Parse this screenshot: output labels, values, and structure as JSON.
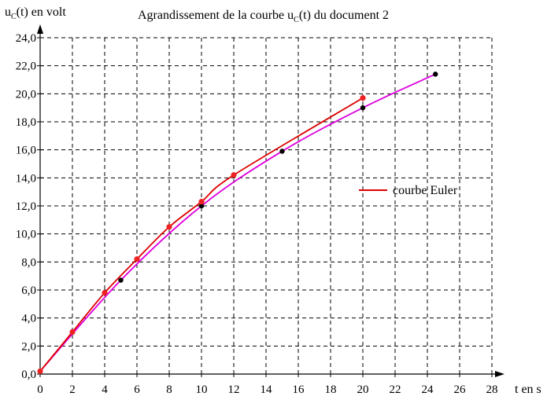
{
  "chart_data": {
    "type": "line",
    "title": "Agrandissement de la courbe uC(t) du document 2",
    "ylabel": "uC(t) en volt",
    "xlabel": "t en s",
    "xlim": [
      0,
      28
    ],
    "ylim": [
      0,
      24
    ],
    "grid": true,
    "x_ticks": [
      0,
      2,
      4,
      6,
      8,
      10,
      12,
      14,
      16,
      18,
      20,
      22,
      24,
      26,
      28
    ],
    "x_tick_labels": [
      "0",
      "2",
      "4",
      "6",
      "8",
      "10",
      "12",
      "14",
      "16",
      "18",
      "20",
      "22",
      "24",
      "26",
      "28"
    ],
    "y_ticks": [
      0,
      2,
      4,
      6,
      8,
      10,
      12,
      14,
      16,
      18,
      20,
      22,
      24
    ],
    "y_tick_labels": [
      "0,0",
      "2,0",
      "4,0",
      "6,0",
      "8,0",
      "10,0",
      "12,0",
      "14,0",
      "16,0",
      "18,0",
      "20,0",
      "22,0",
      "24,0"
    ],
    "legend_position": "right",
    "series": [
      {
        "name": "courbe Euler",
        "color": "#dd0000",
        "marker_color": "#ee2222",
        "x": [
          0,
          2,
          4,
          6,
          8,
          10,
          12,
          20
        ],
        "y": [
          0.2,
          3.0,
          5.8,
          8.2,
          10.5,
          12.3,
          14.2,
          19.7
        ]
      },
      {
        "name": "",
        "color": "#dd00dd",
        "marker_color": "#000000",
        "x": [
          0,
          5,
          10,
          15,
          20,
          24.5
        ],
        "y": [
          0.2,
          6.7,
          12.0,
          15.9,
          19.0,
          21.4
        ]
      }
    ]
  }
}
